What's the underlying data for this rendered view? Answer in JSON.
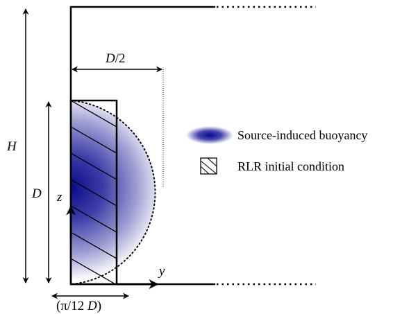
{
  "labels": {
    "height": "H",
    "half_width_num": "D",
    "half_width_den": "/2",
    "depth": "D",
    "z_axis": "z",
    "y_axis": "y",
    "bottom_width_prefix": "(π/12 ",
    "bottom_width_var": "D",
    "bottom_width_suffix": ")"
  },
  "legend": {
    "buoyancy_label": "Source-induced buoyancy",
    "rlr_label": "RLR initial condition"
  },
  "colors": {
    "buoyancy_core": "#0a0a8c",
    "buoyancy_edge": "#ffffff",
    "line": "#000000"
  }
}
